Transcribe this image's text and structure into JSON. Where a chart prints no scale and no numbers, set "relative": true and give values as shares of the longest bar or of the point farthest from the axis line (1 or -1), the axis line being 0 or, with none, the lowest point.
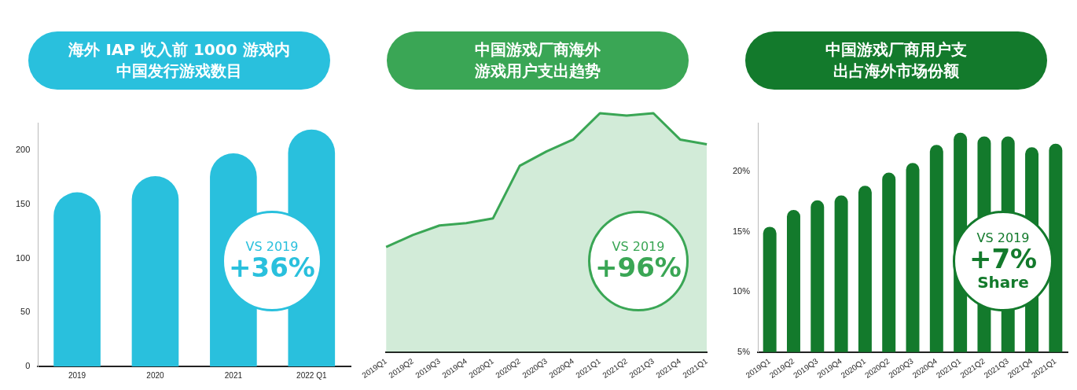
{
  "chart_data": [
    {
      "type": "bar",
      "title": "海外 IAP 收入前 1000 游戏内中国发行游戏数目",
      "categories": [
        "2019",
        "2020",
        "2021",
        "2022 Q1"
      ],
      "values": [
        161,
        176,
        197,
        219
      ],
      "color": "#29c0dd",
      "ylim": [
        0,
        225
      ],
      "yticks": [
        0,
        50,
        100,
        150,
        200
      ],
      "grid": false,
      "annotations": [
        "VS 2019",
        "+36%"
      ]
    },
    {
      "type": "area",
      "title": "中国游戏厂商海外游戏用户支出趋势",
      "categories": [
        "2019Q1",
        "2019Q2",
        "2019Q3",
        "2019Q4",
        "2020Q1",
        "2020Q2",
        "2020Q3",
        "2020Q4",
        "2021Q1",
        "2021Q2",
        "2021Q3",
        "2021Q4",
        "2021Q1"
      ],
      "values": [
        0.44,
        0.49,
        0.53,
        0.54,
        0.56,
        0.78,
        0.84,
        0.89,
        1.0,
        0.99,
        1.0,
        0.89,
        0.87
      ],
      "color": "#3aa655",
      "relative": true,
      "tick_labels": "x",
      "grid": false,
      "annotations": [
        "VS 2019",
        "+96%"
      ]
    },
    {
      "type": "bar",
      "title": "中国游戏厂商用户支出占海外市场份额",
      "categories": [
        "2019Q1",
        "2019Q2",
        "2019Q3",
        "2019Q4",
        "2020Q1",
        "2020Q2",
        "2020Q3",
        "2020Q4",
        "2021Q1",
        "2021Q2",
        "2021Q3",
        "2021Q4",
        "2021Q1"
      ],
      "values": [
        15.4,
        16.8,
        17.6,
        18.0,
        18.8,
        19.9,
        20.7,
        22.2,
        23.2,
        22.9,
        22.9,
        22.0,
        22.3
      ],
      "color": "#137a2c",
      "ylim": [
        5,
        24
      ],
      "yticks": [
        {
          "value": 5,
          "label": "5%"
        },
        {
          "value": 10,
          "label": "10%"
        },
        {
          "value": 15,
          "label": "15%"
        },
        {
          "value": 20,
          "label": "20%"
        }
      ],
      "grid": false,
      "annotations": [
        "VS 2019",
        "+7%",
        "Share"
      ]
    }
  ]
}
